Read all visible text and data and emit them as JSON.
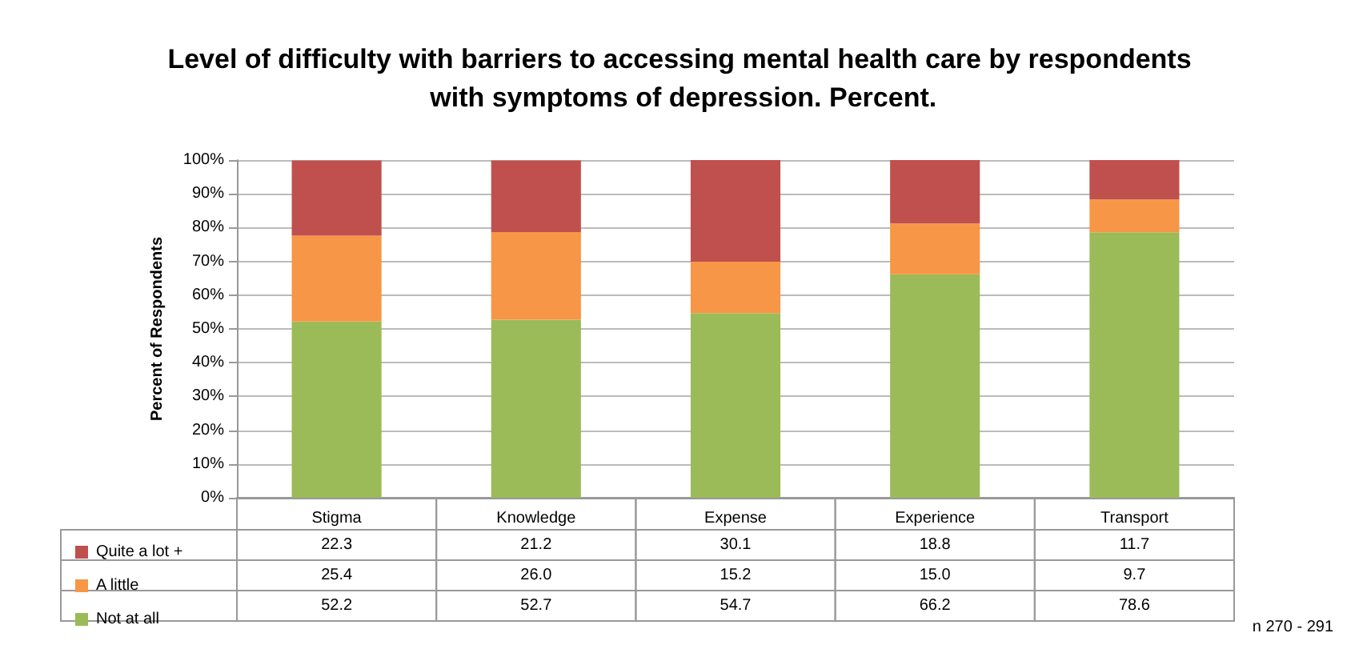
{
  "chart_data": {
    "type": "bar",
    "title": "Level of difficulty with barriers to accessing mental health care by respondents with symptoms of depression. Percent.",
    "ylabel": "Percent of Respondents",
    "categories": [
      "Stigma",
      "Knowledge",
      "Expense",
      "Experience",
      "Transport"
    ],
    "series": [
      {
        "name": "Not at all",
        "color": "#9bbb59",
        "values": [
          52.2,
          52.7,
          54.7,
          66.2,
          78.6
        ],
        "value_labels": [
          "52.2",
          "52.7",
          "54.7",
          "66.2",
          "78.6"
        ]
      },
      {
        "name": "A little",
        "color": "#f79646",
        "values": [
          25.4,
          26.0,
          15.2,
          15.0,
          9.7
        ],
        "value_labels": [
          "25.4",
          "26.0",
          "15.2",
          "15.0",
          "9.7"
        ]
      },
      {
        "name": "Quite a lot +",
        "color": "#c0504d",
        "values": [
          22.3,
          21.2,
          30.1,
          18.8,
          11.7
        ],
        "value_labels": [
          "22.3",
          "21.2",
          "30.1",
          "18.8",
          "11.7"
        ]
      }
    ],
    "stacked": true,
    "ylim": [
      0,
      100
    ],
    "yticks": [
      {
        "value": 0,
        "label": "0%"
      },
      {
        "value": 10,
        "label": "10%"
      },
      {
        "value": 20,
        "label": "20%"
      },
      {
        "value": 30,
        "label": "30%"
      },
      {
        "value": 40,
        "label": "40%"
      },
      {
        "value": 50,
        "label": "50%"
      },
      {
        "value": 60,
        "label": "60%"
      },
      {
        "value": 70,
        "label": "70%"
      },
      {
        "value": 80,
        "label": "80%"
      },
      {
        "value": 90,
        "label": "90%"
      },
      {
        "value": 100,
        "label": "100%"
      }
    ],
    "grid": "y",
    "legend": "bottom left",
    "annotations": [
      "n 270 - 291"
    ]
  }
}
